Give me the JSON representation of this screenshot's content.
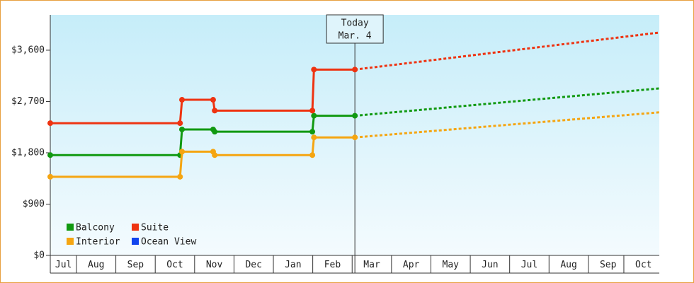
{
  "chart_data": {
    "type": "line",
    "xlim": [
      0.335,
      15.8
    ],
    "xticks": [
      {
        "value": 0.67,
        "label": "Jul"
      },
      {
        "value": 1.5,
        "label": "Aug"
      },
      {
        "value": 2.5,
        "label": "Sep"
      },
      {
        "value": 3.5,
        "label": "Oct"
      },
      {
        "value": 4.5,
        "label": "Nov"
      },
      {
        "value": 5.5,
        "label": "Dec"
      },
      {
        "value": 6.5,
        "label": "Jan"
      },
      {
        "value": 7.5,
        "label": "Feb"
      },
      {
        "value": 8.5,
        "label": "Mar"
      },
      {
        "value": 9.5,
        "label": "Apr"
      },
      {
        "value": 10.5,
        "label": "May"
      },
      {
        "value": 11.5,
        "label": "Jun"
      },
      {
        "value": 12.5,
        "label": "Jul"
      },
      {
        "value": 13.5,
        "label": "Aug"
      },
      {
        "value": 14.5,
        "label": "Sep"
      },
      {
        "value": 15.4,
        "label": "Oct"
      }
    ],
    "ylim": [
      0,
      4220
    ],
    "yticks": [
      {
        "value": 0,
        "label": "$0"
      },
      {
        "value": 900,
        "label": "$900"
      },
      {
        "value": 1800,
        "label": "$1,800"
      },
      {
        "value": 2700,
        "label": "$2,700"
      },
      {
        "value": 3600,
        "label": "$3,600"
      }
    ],
    "annotation": {
      "x": 8.07,
      "label": "Today",
      "date": "Mar. 4"
    },
    "series": [
      {
        "name": "Balcony",
        "color": "#119911",
        "x": [
          0.335,
          3.63,
          3.68,
          4.47,
          4.51,
          6.99,
          7.03,
          8.07
        ],
        "values": [
          1760,
          1760,
          2210,
          2210,
          2170,
          2170,
          2450,
          2450
        ],
        "forecast_x": [
          8.07,
          15.8
        ],
        "forecast_values": [
          2450,
          2930
        ]
      },
      {
        "name": "Suite",
        "color": "#ee3311",
        "x": [
          0.335,
          3.63,
          3.68,
          4.47,
          4.51,
          6.99,
          7.03,
          8.07
        ],
        "values": [
          2320,
          2320,
          2730,
          2730,
          2540,
          2540,
          3260,
          3260
        ],
        "forecast_x": [
          8.07,
          15.8
        ],
        "forecast_values": [
          3260,
          3910
        ]
      },
      {
        "name": "Interior",
        "color": "#f5a511",
        "x": [
          0.335,
          3.63,
          3.68,
          4.47,
          4.51,
          6.99,
          7.03,
          8.07
        ],
        "values": [
          1380,
          1380,
          1820,
          1820,
          1760,
          1760,
          2070,
          2070
        ],
        "forecast_x": [
          8.07,
          15.8
        ],
        "forecast_values": [
          2070,
          2510
        ]
      },
      {
        "name": "Ocean View",
        "color": "#1144ee",
        "x": [],
        "values": [],
        "forecast_x": [],
        "forecast_values": []
      }
    ]
  }
}
